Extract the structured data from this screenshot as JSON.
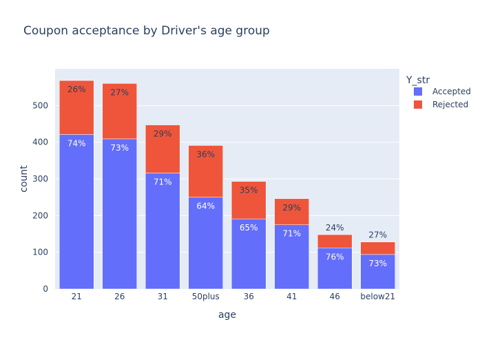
{
  "chart_data": {
    "type": "bar",
    "barmode": "stack",
    "title": "Coupon acceptance by Driver's age group",
    "xlabel": "age",
    "ylabel": "count",
    "categories": [
      "21",
      "26",
      "31",
      "50plus",
      "36",
      "41",
      "46",
      "below21"
    ],
    "ylim": [
      0,
      600
    ],
    "yticks": [
      0,
      100,
      200,
      300,
      400,
      500
    ],
    "grid": true,
    "legend": {
      "title": "Y_str",
      "position": "top-right"
    },
    "colors": {
      "plot_bg": "#e5ecf6",
      "grid": "#ffffff",
      "Accepted": "#636efa",
      "Rejected": "#ef553b"
    },
    "series": [
      {
        "name": "Accepted",
        "values": [
          421,
          409,
          316,
          250,
          191,
          175,
          112,
          94
        ],
        "labels": [
          "74%",
          "73%",
          "71%",
          "64%",
          "65%",
          "71%",
          "76%",
          "73%"
        ]
      },
      {
        "name": "Rejected",
        "values": [
          147,
          151,
          131,
          141,
          102,
          71,
          36,
          34
        ],
        "labels": [
          "26%",
          "27%",
          "29%",
          "36%",
          "35%",
          "29%",
          "24%",
          "27%"
        ]
      }
    ]
  }
}
